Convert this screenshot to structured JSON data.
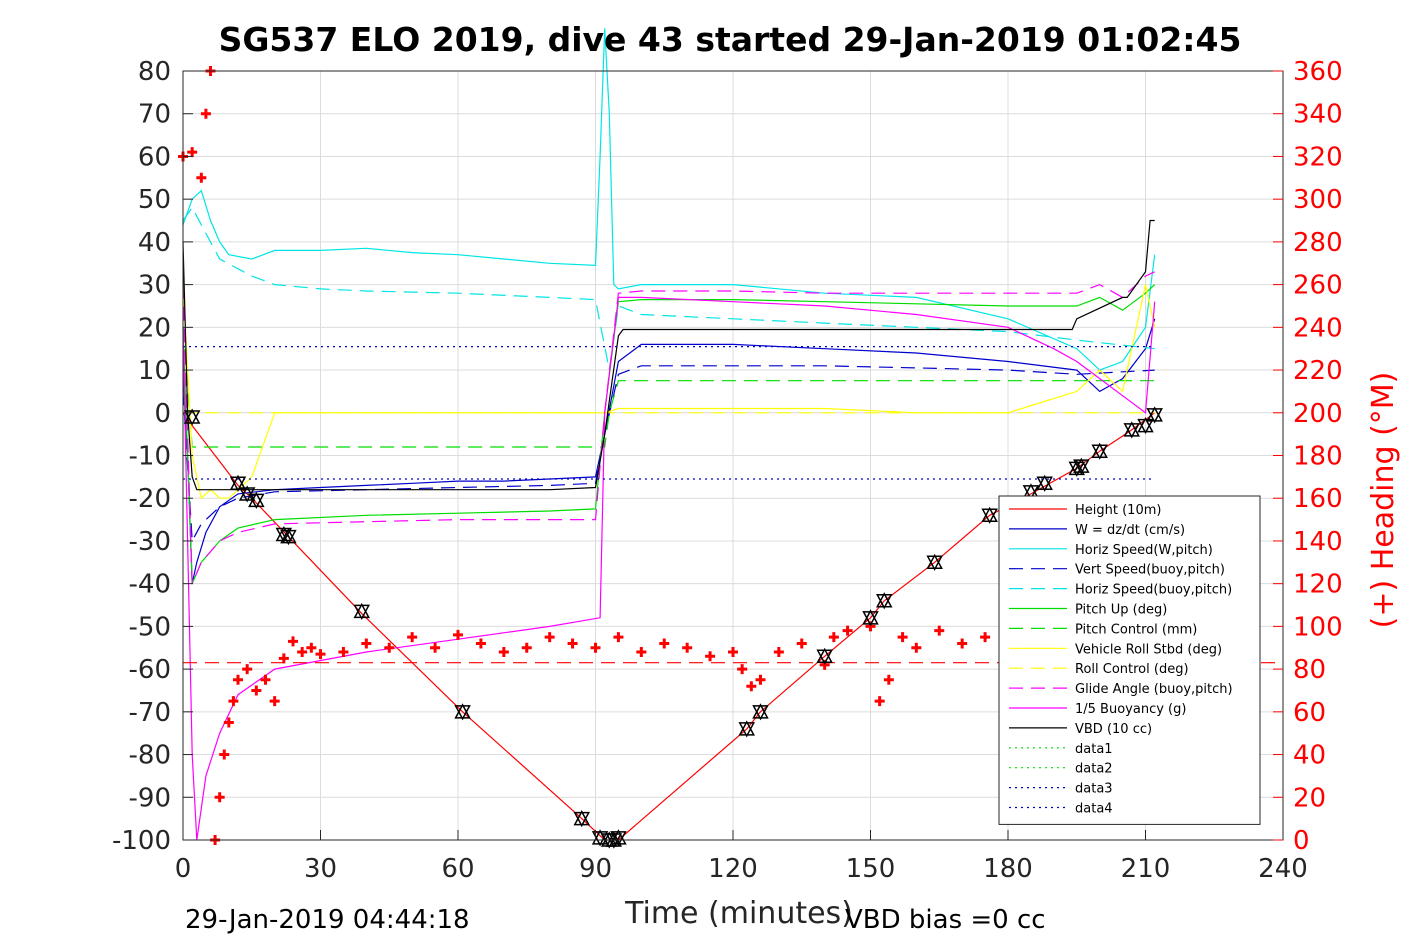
{
  "title": "SG537 ELO 2019, dive 43 started 29-Jan-2019 01:02:45",
  "footer_left": "29-Jan-2019 04:44:18",
  "footer_right": "VBD bias =0 cc",
  "chart_data": {
    "type": "line",
    "title": "SG537 ELO 2019, dive 43 started 29-Jan-2019 01:02:45",
    "xlabel": "Time (minutes)",
    "ylabel": "",
    "y2label": "(+) Heading (°M)",
    "xlim": [
      0,
      240
    ],
    "ylim": [
      -100,
      80
    ],
    "y2lim": [
      0,
      360
    ],
    "xticks": [
      0,
      30,
      60,
      90,
      120,
      150,
      180,
      210,
      240
    ],
    "yticks": [
      80,
      70,
      60,
      50,
      40,
      30,
      20,
      10,
      0,
      -10,
      -20,
      -30,
      -40,
      -50,
      -60,
      -70,
      -80,
      -90,
      -100
    ],
    "y2ticks": [
      360,
      340,
      320,
      300,
      280,
      260,
      240,
      220,
      200,
      180,
      160,
      140,
      120,
      100,
      80,
      60,
      40,
      20,
      0
    ],
    "grid": true,
    "legend_position": "bottom-right",
    "series": [
      {
        "name": "Height (10m)",
        "color": "#ff0000",
        "style": "solid",
        "x": [
          0,
          2,
          12,
          15,
          23,
          39,
          61,
          87,
          92,
          95,
          123,
          126,
          140,
          150,
          153,
          164,
          176,
          185,
          195,
          200,
          207,
          212
        ],
        "y": [
          0,
          -3,
          -17,
          -20,
          -29,
          -47,
          -70,
          -95,
          -100,
          -100,
          -74,
          -70,
          -57,
          -48,
          -44,
          -35,
          -24,
          -19,
          -13,
          -9,
          -4,
          0
        ]
      },
      {
        "name": "W = dz/dt (cm/s)",
        "color": "#0000cc",
        "style": "solid",
        "x": [
          0,
          1,
          2,
          3,
          5,
          8,
          12,
          20,
          30,
          40,
          50,
          60,
          70,
          80,
          90,
          92,
          95,
          100,
          120,
          140,
          160,
          180,
          195,
          200,
          205,
          210,
          212
        ],
        "y": [
          10,
          -10,
          -40,
          -35,
          -28,
          -22,
          -19,
          -18,
          -17.5,
          -17,
          -16.5,
          -16,
          -16,
          -15.5,
          -15,
          -5,
          12,
          16,
          16,
          15,
          14,
          12,
          10,
          5,
          8,
          15,
          22
        ]
      },
      {
        "name": "Horiz Speed(W,pitch)",
        "color": "#00e5e5",
        "style": "solid",
        "x": [
          0,
          2,
          4,
          6,
          8,
          10,
          15,
          20,
          30,
          40,
          50,
          60,
          70,
          80,
          90,
          91,
          92,
          93,
          94,
          95,
          100,
          120,
          140,
          160,
          180,
          195,
          200,
          205,
          210,
          212
        ],
        "y": [
          44,
          50,
          52,
          45,
          40,
          37,
          36,
          38,
          38,
          38.5,
          37.5,
          37,
          36,
          35,
          34.5,
          60,
          90,
          70,
          30,
          29,
          30,
          30,
          28,
          27,
          22,
          15,
          10,
          12,
          20,
          37
        ]
      },
      {
        "name": "Vert Speed(buoy,pitch)",
        "color": "#0000cc",
        "style": "dashed",
        "x": [
          0,
          2,
          4,
          8,
          12,
          20,
          40,
          60,
          80,
          90,
          92,
          95,
          100,
          120,
          140,
          160,
          180,
          195,
          212
        ],
        "y": [
          5,
          -30,
          -26,
          -22,
          -20,
          -18.5,
          -18,
          -17.5,
          -17,
          -16.5,
          -5,
          9,
          11,
          11,
          11,
          10.5,
          10,
          9,
          10
        ]
      },
      {
        "name": "Horiz Speed(buoy,pitch)",
        "color": "#00e5e5",
        "style": "dashed",
        "x": [
          0,
          2,
          4,
          8,
          15,
          20,
          30,
          40,
          60,
          80,
          90,
          93,
          95,
          100,
          120,
          140,
          160,
          180,
          195,
          212
        ],
        "y": [
          45,
          48,
          44,
          36,
          32,
          30,
          29,
          28.5,
          28,
          27,
          26.5,
          10,
          25,
          23,
          22,
          21,
          20,
          19,
          17,
          15
        ]
      },
      {
        "name": "Pitch Up (deg)",
        "color": "#00dd00",
        "style": "solid",
        "x": [
          0,
          2,
          4,
          8,
          12,
          20,
          40,
          60,
          80,
          90,
          92,
          95,
          100,
          120,
          140,
          160,
          180,
          195,
          200,
          205,
          210,
          212
        ],
        "y": [
          20,
          -40,
          -35,
          -30,
          -27,
          -25,
          -24,
          -23.5,
          -23,
          -22.5,
          0,
          26,
          26.5,
          26.5,
          26,
          25.5,
          25,
          25,
          27,
          24,
          28,
          30
        ]
      },
      {
        "name": "Pitch Control (mm)",
        "color": "#00dd00",
        "style": "dashed",
        "x": [
          0,
          2,
          4,
          92,
          93,
          95,
          212
        ],
        "y": [
          20,
          -8,
          -8,
          -8,
          0,
          7.5,
          7.5
        ]
      },
      {
        "name": "Vehicle Roll Stbd (deg)",
        "color": "#ffff00",
        "style": "solid",
        "x": [
          0,
          2,
          4,
          6,
          8,
          10,
          12,
          15,
          20,
          30,
          40,
          60,
          80,
          90,
          92,
          95,
          100,
          120,
          140,
          160,
          180,
          195,
          200,
          205,
          210,
          212
        ],
        "y": [
          30,
          -10,
          -20,
          -18,
          -20,
          -20,
          -18,
          -15,
          0,
          0,
          0,
          0,
          0,
          0,
          0,
          1,
          1,
          1,
          1,
          0,
          0,
          5,
          10,
          5,
          30,
          20
        ]
      },
      {
        "name": "Roll Control (deg)",
        "color": "#ffff00",
        "style": "dashed",
        "x": [
          0,
          2,
          212
        ],
        "y": [
          0,
          0,
          0
        ]
      },
      {
        "name": "Glide Angle (buoy,pitch)",
        "color": "#ff00ff",
        "style": "dashed",
        "x": [
          0,
          2,
          4,
          8,
          12,
          20,
          40,
          60,
          80,
          90,
          92,
          95,
          100,
          120,
          140,
          160,
          180,
          195,
          200,
          205,
          210,
          212
        ],
        "y": [
          30,
          -40,
          -35,
          -30,
          -28,
          -26,
          -25.5,
          -25,
          -25,
          -25,
          0,
          28,
          28.5,
          28.5,
          28,
          28,
          28,
          28,
          30,
          27,
          32,
          33
        ]
      },
      {
        "name": "1/5 Buoyancy (g)",
        "color": "#ff00ff",
        "style": "solid",
        "x": [
          0,
          2,
          3,
          5,
          8,
          12,
          20,
          40,
          60,
          80,
          91,
          92,
          95,
          100,
          120,
          140,
          160,
          180,
          190,
          195,
          200,
          205,
          210,
          212
        ],
        "y": [
          20,
          -80,
          -100,
          -85,
          -75,
          -66,
          -60,
          -56,
          -53,
          -50,
          -48,
          0,
          27,
          27,
          26,
          25,
          23,
          20,
          15,
          12,
          8,
          4,
          0,
          26
        ]
      },
      {
        "name": "VBD (10 cc)",
        "color": "#000000",
        "style": "solid",
        "x": [
          0,
          1,
          2,
          3,
          4,
          20,
          40,
          60,
          80,
          90,
          92,
          95,
          96,
          100,
          140,
          160,
          180,
          194,
          195,
          205,
          206,
          210,
          211,
          212
        ],
        "y": [
          40,
          0,
          -15,
          -18,
          -18,
          -18,
          -18,
          -18,
          -18,
          -17.5,
          -5,
          18,
          19.5,
          19.5,
          19.5,
          19.5,
          19.5,
          19.5,
          22,
          27,
          27,
          33,
          45,
          45
        ]
      },
      {
        "name": "data1",
        "color": "#00dd00",
        "style": "dotted",
        "x": [],
        "y": []
      },
      {
        "name": "data2",
        "color": "#00dd00",
        "style": "dotted",
        "x": [],
        "y": []
      },
      {
        "name": "data3",
        "color": "#0000cc",
        "style": "dotted",
        "x": [
          0,
          212
        ],
        "y": [
          15.5,
          15.5
        ]
      },
      {
        "name": "data4",
        "color": "#0000cc",
        "style": "dotted",
        "x": [
          0,
          212
        ],
        "y": [
          -15.5,
          -15.5
        ]
      }
    ],
    "heading_series": {
      "color": "#ff0000",
      "axis": "right",
      "marker": "+",
      "x": [
        0,
        2,
        4,
        5,
        6,
        7,
        8,
        9,
        10,
        11,
        12,
        14,
        16,
        18,
        20,
        22,
        24,
        26,
        28,
        30,
        35,
        40,
        45,
        50,
        55,
        60,
        65,
        70,
        75,
        80,
        85,
        90,
        95,
        100,
        105,
        110,
        115,
        120,
        122,
        124,
        126,
        130,
        135,
        140,
        142,
        145,
        150,
        152,
        154,
        157,
        160,
        165,
        170,
        175,
        180,
        185,
        190,
        195,
        200,
        205,
        210,
        212
      ],
      "y": [
        320,
        322,
        310,
        340,
        360,
        0,
        20,
        40,
        55,
        65,
        75,
        80,
        70,
        75,
        65,
        85,
        93,
        88,
        90,
        87,
        88,
        92,
        90,
        95,
        90,
        96,
        92,
        88,
        90,
        95,
        92,
        90,
        95,
        88,
        92,
        90,
        86,
        88,
        80,
        72,
        75,
        88,
        92,
        82,
        95,
        98,
        100,
        65,
        75,
        95,
        90,
        98,
        92,
        95,
        90,
        92,
        95,
        98,
        90,
        95,
        92,
        96
      ]
    },
    "heading_ref": {
      "color": "#ff0000",
      "style": "dashed",
      "value": 83
    },
    "markers": {
      "style": "triangles",
      "color": "#000000",
      "x": [
        2,
        12,
        14,
        16,
        22,
        23,
        39,
        61,
        87,
        91,
        93,
        94,
        95,
        123,
        126,
        140,
        150,
        153,
        164,
        176,
        185,
        188,
        195,
        196,
        200,
        207,
        210,
        212
      ],
      "y": [
        -1,
        -16.5,
        -19,
        -20.5,
        -28.5,
        -29,
        -46.5,
        -70,
        -95,
        -99.5,
        -100,
        -100,
        -99.5,
        -74,
        -70,
        -57,
        -48,
        -44,
        -35,
        -24,
        -18.5,
        -16.5,
        -13,
        -12.5,
        -9,
        -4,
        -3,
        -0.5
      ]
    }
  }
}
